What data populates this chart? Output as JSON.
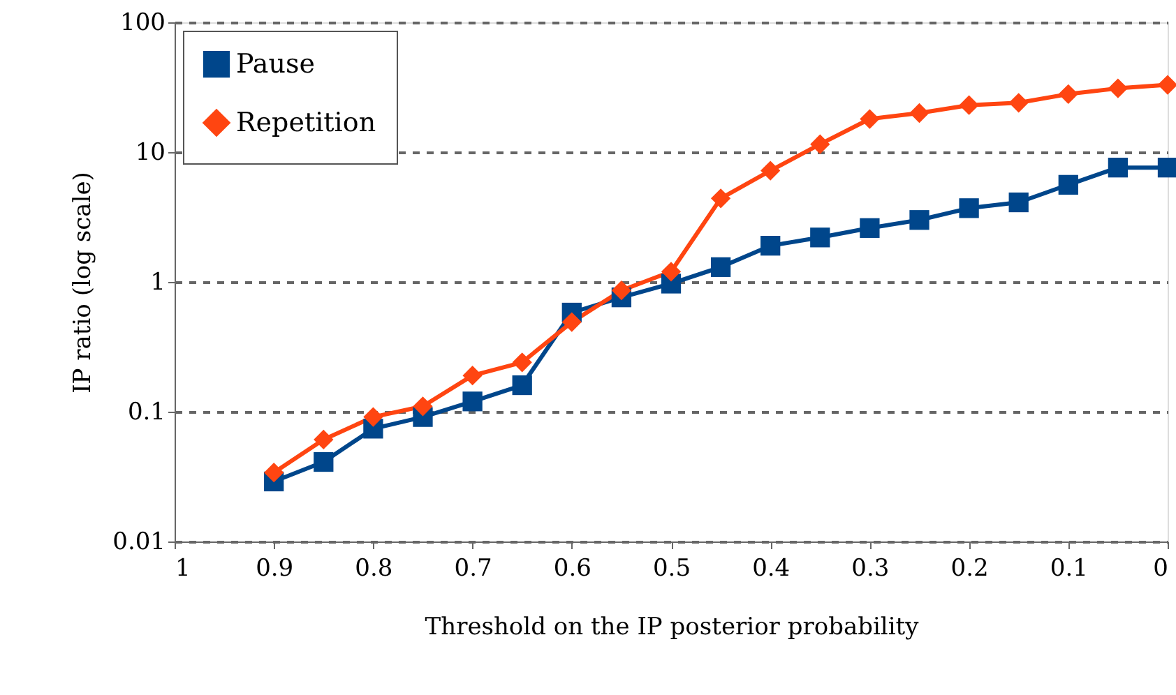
{
  "chart_data": {
    "type": "line",
    "xlabel": "Threshold on the IP posterior probability",
    "ylabel": "IP ratio (log scale)",
    "x": [
      0.9,
      0.85,
      0.8,
      0.75,
      0.7,
      0.65,
      0.6,
      0.55,
      0.5,
      0.45,
      0.4,
      0.35,
      0.3,
      0.25,
      0.2,
      0.15,
      0.1,
      0.05,
      0
    ],
    "series": [
      {
        "name": "Pause",
        "color": "#00468b",
        "marker": "square",
        "values": [
          0.029,
          0.041,
          0.074,
          0.091,
          0.12,
          0.16,
          0.58,
          0.76,
          0.97,
          1.3,
          1.9,
          2.2,
          2.6,
          3.0,
          3.7,
          4.1,
          5.6,
          7.6,
          7.6
        ]
      },
      {
        "name": "Repetition",
        "color": "#ff4511",
        "marker": "diamond",
        "values": [
          0.034,
          0.061,
          0.091,
          0.11,
          0.19,
          0.24,
          0.49,
          0.86,
          1.2,
          4.4,
          7.2,
          11.5,
          18,
          20,
          23,
          24,
          28,
          31,
          33
        ]
      }
    ],
    "xlim": [
      1,
      0
    ],
    "xticks": [
      1,
      0.9,
      0.8,
      0.7,
      0.6,
      0.5,
      0.4,
      0.3,
      0.2,
      0.1,
      0
    ],
    "ylim": [
      0.01,
      100
    ],
    "yticks": [
      0.01,
      0.1,
      1,
      10,
      100
    ],
    "log": "y",
    "grid": "y",
    "legend": "top left",
    "line_style": "solid"
  }
}
